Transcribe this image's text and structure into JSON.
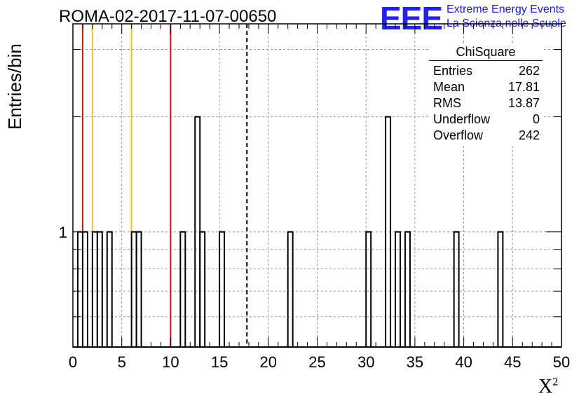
{
  "title": "ROMA-02-2017-11-07-00650",
  "logo": {
    "mark": "EEE",
    "line1": "Extreme Energy Events",
    "line2": "La Scienza nelle Scuole"
  },
  "colors": {
    "red_line": "#dd1111",
    "yellow_line": "#f0c020",
    "grid": "#999999",
    "logo_blue": "#2222ee"
  },
  "stats": {
    "name": "ChiSquare",
    "rows": [
      {
        "label": "Entries",
        "value": "262"
      },
      {
        "label": "Mean",
        "value": "17.81"
      },
      {
        "label": "RMS",
        "value": "13.87"
      },
      {
        "label": "Underflow",
        "value": "0"
      },
      {
        "label": "Overflow",
        "value": "242"
      }
    ]
  },
  "chart_data": {
    "type": "bar",
    "ylabel": "Entries/bin",
    "xlabel": "X",
    "xlabel_sup": "2",
    "xlim": [
      0,
      50
    ],
    "ylim": [
      0.5,
      3.5
    ],
    "log_y": true,
    "grid": true,
    "bin_width": 0.5,
    "x_ticks": [
      0,
      5,
      10,
      15,
      20,
      25,
      30,
      35,
      40,
      45,
      50
    ],
    "y_tick_labels": [
      {
        "value": 1,
        "label": "1"
      }
    ],
    "bins": [
      {
        "x": 0.5,
        "y": 1
      },
      {
        "x": 1.0,
        "y": 1
      },
      {
        "x": 2.0,
        "y": 1
      },
      {
        "x": 2.5,
        "y": 1
      },
      {
        "x": 3.5,
        "y": 1
      },
      {
        "x": 6.0,
        "y": 1
      },
      {
        "x": 6.5,
        "y": 1
      },
      {
        "x": 11.0,
        "y": 1
      },
      {
        "x": 12.5,
        "y": 2
      },
      {
        "x": 13.0,
        "y": 1
      },
      {
        "x": 15.0,
        "y": 1
      },
      {
        "x": 22.0,
        "y": 1
      },
      {
        "x": 30.0,
        "y": 1
      },
      {
        "x": 32.0,
        "y": 2
      },
      {
        "x": 33.0,
        "y": 1
      },
      {
        "x": 34.0,
        "y": 1
      },
      {
        "x": 39.0,
        "y": 1
      },
      {
        "x": 43.5,
        "y": 1
      }
    ],
    "vertical_lines": [
      {
        "x": 1.0,
        "color": "red",
        "style": "solid"
      },
      {
        "x": 2.0,
        "color": "yellow",
        "style": "solid"
      },
      {
        "x": 6.0,
        "color": "yellow",
        "style": "solid"
      },
      {
        "x": 10.0,
        "color": "red",
        "style": "solid"
      },
      {
        "x": 17.81,
        "color": "black",
        "style": "dashed"
      }
    ]
  }
}
